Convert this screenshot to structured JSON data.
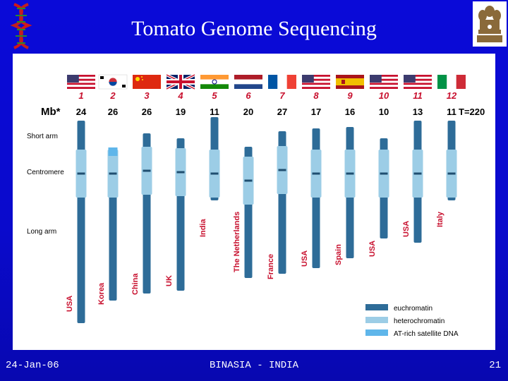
{
  "slide": {
    "title": "Tomato Genome Sequencing",
    "footer_date": "24-Jan-06",
    "footer_org": "BINASIA - INDIA",
    "page_number": "21"
  },
  "diagram": {
    "mb_label": "Mb*",
    "total_label": "T=220",
    "row_labels": [
      "Short arm",
      "Centromere",
      "Long arm"
    ],
    "legend": [
      {
        "label": "euchromatin",
        "color": "#2e6c98"
      },
      {
        "label": "heterochromatin",
        "color": "#9ccde6"
      },
      {
        "label": "AT-rich satellite DNA",
        "color": "#5fb6ea"
      }
    ],
    "chromosomes": [
      {
        "number": "1",
        "mb": "24",
        "country": "USA",
        "flag": "usa"
      },
      {
        "number": "2",
        "mb": "26",
        "country": "Korea",
        "flag": "korea"
      },
      {
        "number": "3",
        "mb": "26",
        "country": "China",
        "flag": "china"
      },
      {
        "number": "4",
        "mb": "19",
        "country": "UK",
        "flag": "uk"
      },
      {
        "number": "5",
        "mb": "11",
        "country": "India",
        "flag": "india"
      },
      {
        "number": "6",
        "mb": "20",
        "country": "The Netherlands",
        "flag": "netherlands"
      },
      {
        "number": "7",
        "mb": "27",
        "country": "France",
        "flag": "france"
      },
      {
        "number": "8",
        "mb": "17",
        "country": "USA",
        "flag": "usa"
      },
      {
        "number": "9",
        "mb": "16",
        "country": "Spain",
        "flag": "spain"
      },
      {
        "number": "10",
        "mb": "10",
        "country": "USA",
        "flag": "usa"
      },
      {
        "number": "11",
        "mb": "13",
        "country": "USA",
        "flag": "usa"
      },
      {
        "number": "12",
        "mb": "11",
        "country": "Italy",
        "flag": "italy"
      }
    ]
  }
}
